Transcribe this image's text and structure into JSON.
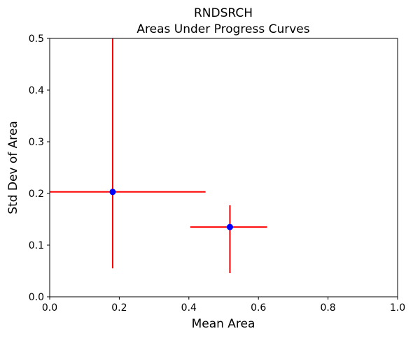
{
  "chart_data": {
    "type": "scatter",
    "title": "RNDSRCH",
    "subtitle": "Areas Under Progress Curves",
    "xlabel": "Mean Area",
    "ylabel": "Std Dev of Area",
    "xlim": [
      0.0,
      1.0
    ],
    "ylim": [
      0.0,
      0.5
    ],
    "xticks": [
      "0.0",
      "0.2",
      "0.4",
      "0.6",
      "0.8",
      "1.0"
    ],
    "yticks": [
      "0.0",
      "0.1",
      "0.2",
      "0.3",
      "0.4",
      "0.5"
    ],
    "grid": false,
    "point_color": "#0000ff",
    "errorbar_color": "#ff0000",
    "points": [
      {
        "x": 0.181,
        "y": 0.203,
        "x_err": [
          0.0,
          0.448
        ],
        "y_err": [
          0.055,
          0.5
        ]
      },
      {
        "x": 0.518,
        "y": 0.135,
        "x_err": [
          0.404,
          0.625
        ],
        "y_err": [
          0.046,
          0.177
        ]
      }
    ]
  }
}
